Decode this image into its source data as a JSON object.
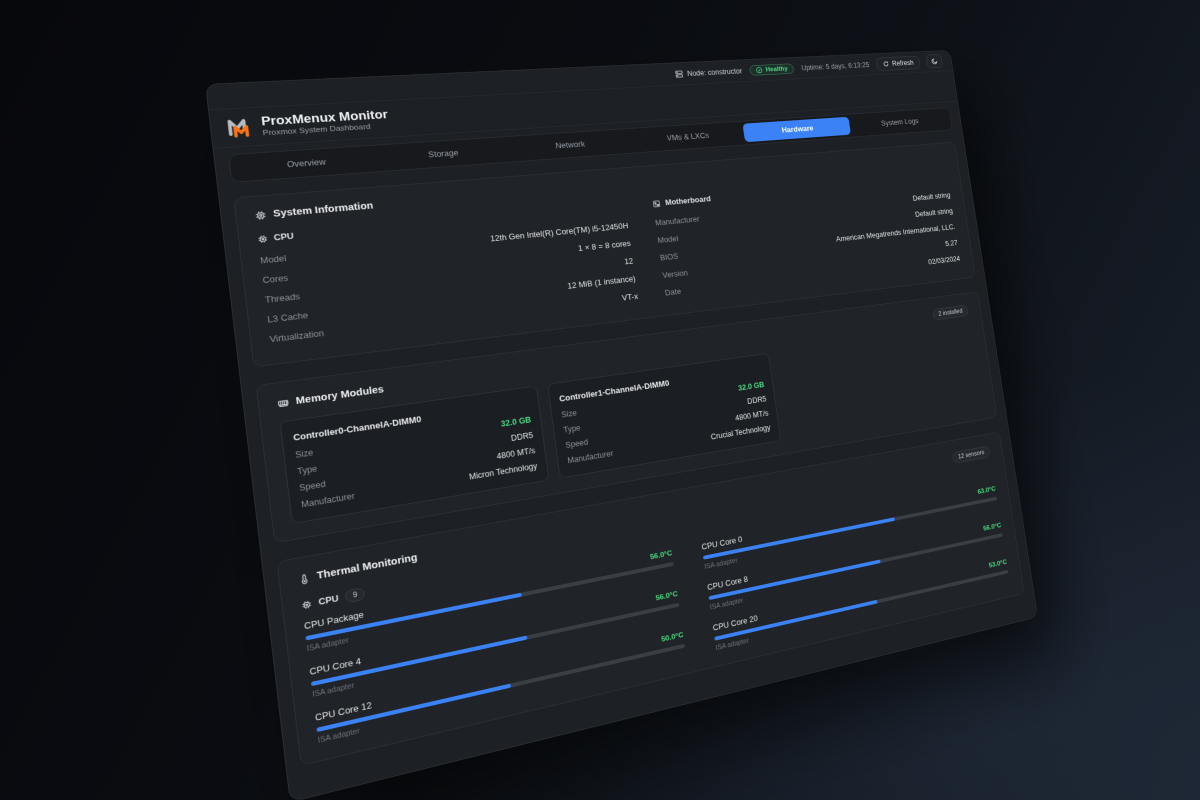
{
  "window": {
    "title": "ProxMenux Monitor",
    "subtitle": "Proxmox System Dashboard"
  },
  "topbar": {
    "node_label": "Node: constructor",
    "health_label": "Healthy",
    "uptime": "Uptime: 5 days, 6:13:25",
    "refresh_label": "Refresh"
  },
  "icons": {
    "node": "server-icon",
    "health": "check-circle-icon",
    "refresh": "refresh-arrow-icon",
    "theme": "moon-icon",
    "system_info": "chip-icon",
    "cpu": "chip-icon",
    "motherboard": "circuit-board-icon",
    "memory": "ram-stick-icon",
    "thermal": "thermometer-icon",
    "logo": "proxmenux-m-logo"
  },
  "colors": {
    "accent_blue": "#3b82f6",
    "healthy_green": "#4ade80",
    "temperature_green": "#4ade80",
    "panel_bg": "#1d2024",
    "card_bg": "#202327",
    "logo_orange": "#f97316"
  },
  "tabs": [
    {
      "label": "Overview",
      "active": false
    },
    {
      "label": "Storage",
      "active": false
    },
    {
      "label": "Network",
      "active": false
    },
    {
      "label": "VMs & LXCs",
      "active": false
    },
    {
      "label": "Hardware",
      "active": true
    },
    {
      "label": "System Logs",
      "active": false
    }
  ],
  "system_info": {
    "title": "System Information",
    "cpu": {
      "title": "CPU",
      "rows": [
        {
          "label": "Model",
          "value": "12th Gen Intel(R) Core(TM) i5-12450H"
        },
        {
          "label": "Cores",
          "value": "1 × 8 = 8 cores"
        },
        {
          "label": "Threads",
          "value": "12"
        },
        {
          "label": "L3 Cache",
          "value": "12 MiB (1 instance)"
        },
        {
          "label": "Virtualization",
          "value": "VT-x"
        }
      ]
    },
    "motherboard": {
      "title": "Motherboard",
      "rows": [
        {
          "label": "Manufacturer",
          "value": "Default string"
        },
        {
          "label": "Model",
          "value": "Default string"
        },
        {
          "label": "BIOS",
          "value": "American Megatrends International, LLC."
        },
        {
          "label": "Version",
          "value": "5.27"
        },
        {
          "label": "Date",
          "value": "02/03/2024"
        }
      ]
    }
  },
  "memory": {
    "title": "Memory Modules",
    "badge": "2 installed",
    "modules": [
      {
        "name": "Controller0-ChannelA-DIMM0",
        "rows": [
          {
            "label": "Size",
            "value": "32.0 GB"
          },
          {
            "label": "Type",
            "value": "DDR5"
          },
          {
            "label": "Speed",
            "value": "4800 MT/s"
          },
          {
            "label": "Manufacturer",
            "value": "Micron Technology"
          }
        ]
      },
      {
        "name": "Controller1-ChannelA-DIMM0",
        "rows": [
          {
            "label": "Size",
            "value": "32.0 GB"
          },
          {
            "label": "Type",
            "value": "DDR5"
          },
          {
            "label": "Speed",
            "value": "4800 MT/s"
          },
          {
            "label": "Manufacturer",
            "value": "Crucial Technology"
          }
        ]
      }
    ]
  },
  "thermal": {
    "title": "Thermal Monitoring",
    "badge": "12 sensors",
    "group": {
      "label": "CPU",
      "count": "9"
    },
    "sensors": [
      {
        "name": "CPU Package",
        "temp": "56.0°C",
        "pct": 56,
        "adapter": "ISA adapter"
      },
      {
        "name": "CPU Core 0",
        "temp": "63.0°C",
        "pct": 63,
        "adapter": "ISA adapter"
      },
      {
        "name": "CPU Core 4",
        "temp": "56.0°C",
        "pct": 56,
        "adapter": "ISA adapter"
      },
      {
        "name": "CPU Core 8",
        "temp": "56.0°C",
        "pct": 56,
        "adapter": "ISA adapter"
      },
      {
        "name": "CPU Core 12",
        "temp": "50.0°C",
        "pct": 50,
        "adapter": "ISA adapter"
      },
      {
        "name": "CPU Core 20",
        "temp": "53.0°C",
        "pct": 53,
        "adapter": "ISA adapter"
      }
    ]
  }
}
